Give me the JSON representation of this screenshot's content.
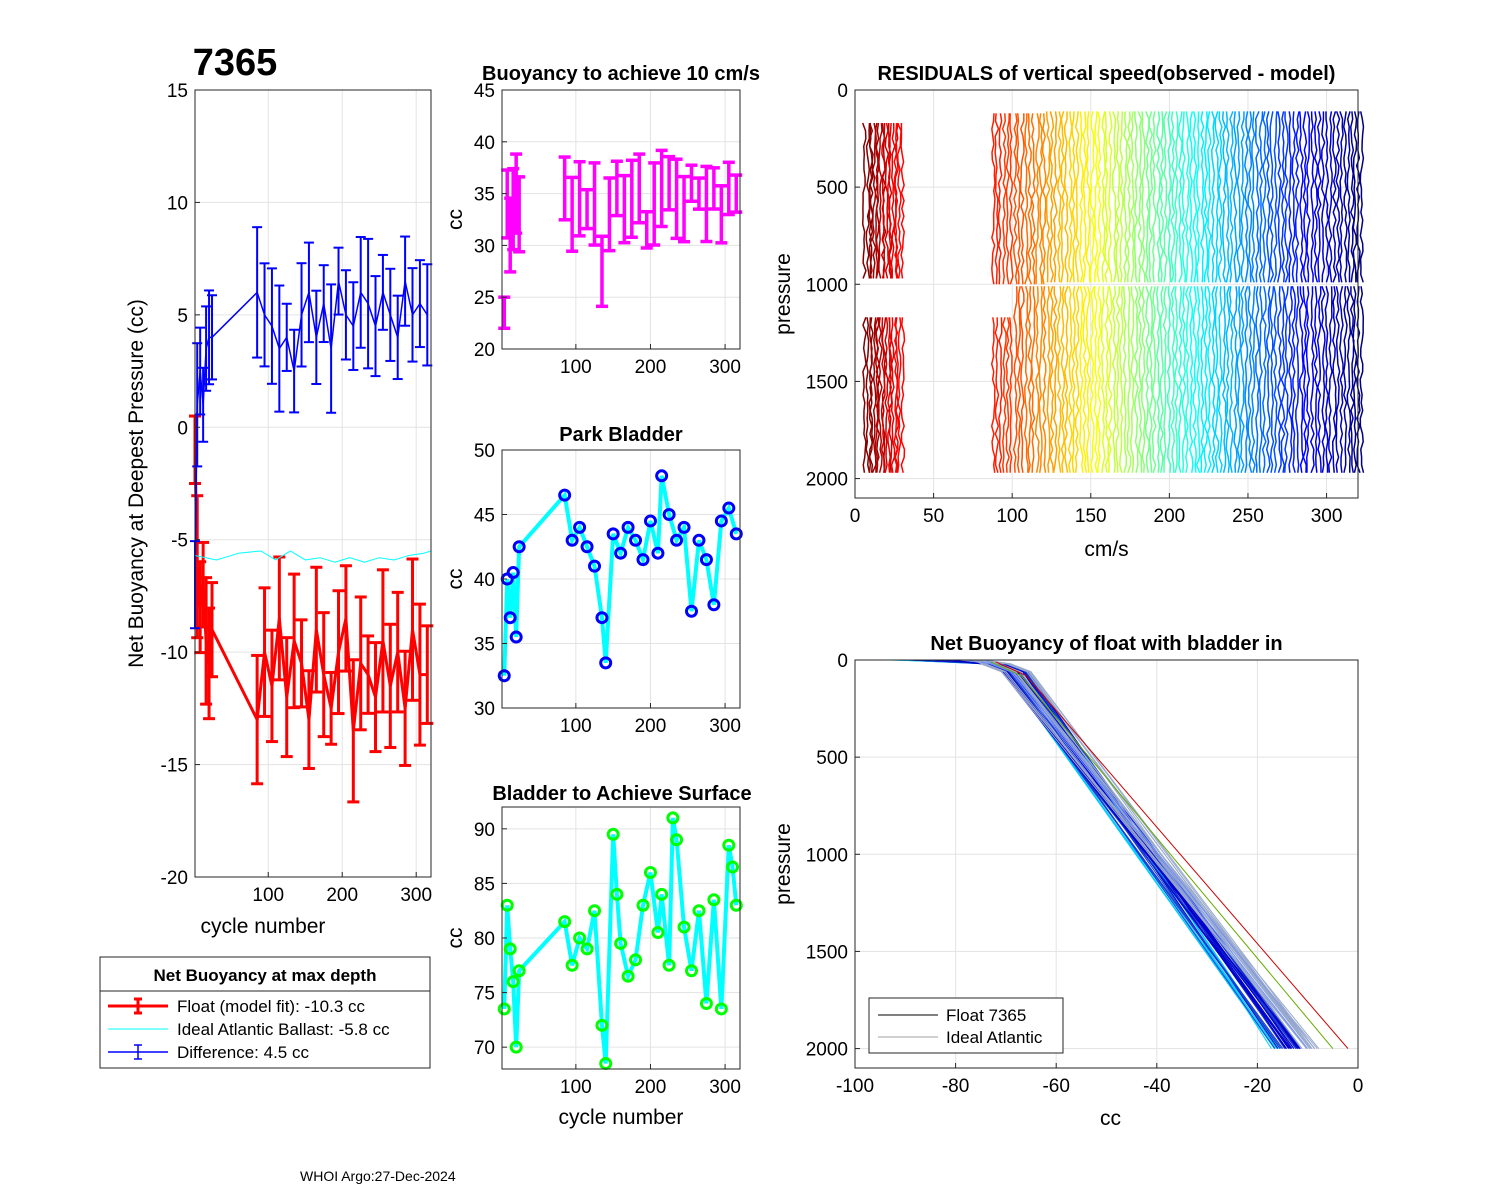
{
  "footer": "WHOI Argo:27-Dec-2024",
  "chart_data": [
    {
      "id": "netbuoy",
      "type": "line",
      "title": "7365",
      "xlabel": "cycle number",
      "ylabel": "Net Buoyancy at Deepest Pressure (cc)",
      "xlim": [
        1,
        320
      ],
      "ylim": [
        -20,
        15
      ],
      "xticks": [
        100,
        200,
        300
      ],
      "yticks": [
        15,
        10,
        5,
        0,
        -5,
        -10,
        -15,
        -20
      ],
      "series": [
        {
          "name": "Float (model fit)",
          "color": "#ff0000",
          "x": [
            1,
            4,
            8,
            12,
            16,
            20,
            24,
            85,
            95,
            105,
            115,
            125,
            135,
            145,
            155,
            165,
            175,
            185,
            195,
            205,
            215,
            225,
            235,
            245,
            255,
            265,
            275,
            285,
            295,
            305,
            315
          ],
          "y": [
            -1.0,
            -6.2,
            -8.0,
            -7.0,
            -9.5,
            -10.5,
            -9.0,
            -13.0,
            -10.0,
            -11.5,
            -8.5,
            -12.0,
            -9.5,
            -10.5,
            -13.0,
            -9.0,
            -11.0,
            -12.5,
            -10.0,
            -8.5,
            -13.5,
            -10.5,
            -11.0,
            -12.0,
            -9.5,
            -11.5,
            -10.0,
            -12.5,
            -9.0,
            -11.0,
            -11.0
          ]
        },
        {
          "name": "Ideal Atlantic Ballast",
          "color": "#00ffff",
          "x": [
            1,
            30,
            60,
            90,
            110,
            130,
            150,
            170,
            190,
            210,
            230,
            250,
            270,
            290,
            310,
            320
          ],
          "y": [
            -5.7,
            -5.9,
            -5.6,
            -5.5,
            -5.9,
            -5.5,
            -5.9,
            -5.8,
            -6.0,
            -5.8,
            -6.0,
            -5.8,
            -5.9,
            -5.7,
            -5.6,
            -5.5
          ],
          "value_label": "-5.8 cc"
        },
        {
          "name": "Difference",
          "color": "#0000ff",
          "x": [
            1,
            4,
            8,
            12,
            16,
            20,
            24,
            85,
            95,
            105,
            115,
            125,
            135,
            145,
            155,
            165,
            175,
            185,
            195,
            205,
            215,
            225,
            235,
            245,
            255,
            265,
            275,
            285,
            295,
            305,
            315
          ],
          "y": [
            -7.0,
            1.0,
            2.5,
            1.0,
            3.5,
            4.0,
            4.0,
            6.0,
            5.0,
            4.5,
            3.5,
            4.0,
            2.5,
            5.0,
            6.0,
            4.0,
            5.5,
            3.5,
            6.5,
            5.0,
            4.5,
            6.0,
            5.5,
            4.5,
            6.0,
            5.0,
            4.0,
            6.5,
            5.0,
            5.5,
            5.0
          ]
        }
      ],
      "legend": {
        "title": "Net Buoyancy at max depth",
        "entries": [
          {
            "label": "Float (model fit): -10.3 cc",
            "color": "#ff0000"
          },
          {
            "label": "Ideal Atlantic Ballast:  -5.8 cc",
            "color": "#00ffff"
          },
          {
            "label": "Difference:   4.5 cc",
            "color": "#0000ff"
          }
        ]
      }
    },
    {
      "id": "buoy10",
      "type": "scatter",
      "title": "Buoyancy to achieve 10 cm/s",
      "xlabel": "",
      "ylabel": "cc",
      "xlim": [
        1,
        320
      ],
      "ylim": [
        20,
        45
      ],
      "xticks": [
        100,
        200,
        300
      ],
      "yticks": [
        45,
        40,
        35,
        30,
        25,
        20
      ],
      "color": "#ff00ff",
      "x": [
        4,
        8,
        12,
        16,
        20,
        24,
        85,
        95,
        105,
        115,
        125,
        135,
        145,
        155,
        165,
        175,
        185,
        195,
        205,
        215,
        225,
        235,
        245,
        255,
        265,
        275,
        285,
        295,
        305,
        315
      ],
      "y": [
        23.5,
        34.0,
        31.0,
        33.5,
        35.0,
        33.0,
        35.5,
        33.0,
        34.5,
        33.5,
        34.0,
        27.5,
        33.0,
        35.5,
        33.5,
        34.5,
        35.5,
        31.5,
        34.0,
        35.5,
        36.0,
        34.5,
        33.5,
        36.0,
        35.0,
        34.0,
        35.5,
        33.0,
        35.5,
        35.0
      ]
    },
    {
      "id": "park",
      "type": "scatter",
      "title": "Park Bladder",
      "xlabel": "",
      "ylabel": "cc",
      "xlim": [
        1,
        320
      ],
      "ylim": [
        30,
        50
      ],
      "xticks": [
        100,
        200,
        300
      ],
      "yticks": [
        50,
        45,
        40,
        35,
        30
      ],
      "color": "#0000ff",
      "x": [
        4,
        8,
        12,
        16,
        20,
        24,
        85,
        95,
        105,
        115,
        125,
        135,
        140,
        150,
        160,
        170,
        180,
        190,
        200,
        210,
        215,
        225,
        235,
        245,
        255,
        265,
        275,
        285,
        295,
        305,
        315
      ],
      "y": [
        32.5,
        40.0,
        37.0,
        40.5,
        35.5,
        42.5,
        46.5,
        43.0,
        44.0,
        42.5,
        41.0,
        37.0,
        33.5,
        43.5,
        42.0,
        44.0,
        43.0,
        41.5,
        44.5,
        42.0,
        48.0,
        45.0,
        43.0,
        44.0,
        37.5,
        43.0,
        41.5,
        38.0,
        44.5,
        45.5,
        43.5
      ]
    },
    {
      "id": "surface",
      "type": "scatter",
      "title": "Bladder to Achieve Surface",
      "xlabel": "cycle number",
      "ylabel": "cc",
      "xlim": [
        1,
        320
      ],
      "ylim": [
        68,
        92
      ],
      "xticks": [
        100,
        200,
        300
      ],
      "yticks": [
        90,
        85,
        80,
        75,
        70
      ],
      "color": "#00ff00",
      "x": [
        4,
        8,
        12,
        16,
        20,
        24,
        85,
        95,
        105,
        115,
        125,
        135,
        140,
        150,
        155,
        160,
        170,
        180,
        190,
        200,
        210,
        215,
        225,
        230,
        235,
        245,
        255,
        265,
        275,
        285,
        295,
        305,
        310,
        315
      ],
      "y": [
        73.5,
        83.0,
        79.0,
        76.0,
        70.0,
        77.0,
        81.5,
        77.5,
        80.0,
        79.0,
        82.5,
        72.0,
        68.5,
        89.5,
        84.0,
        79.5,
        76.5,
        78.0,
        83.0,
        86.0,
        80.5,
        84.0,
        77.5,
        91.0,
        89.0,
        81.0,
        77.0,
        82.5,
        74.0,
        83.5,
        73.5,
        88.5,
        86.5,
        83.0
      ]
    },
    {
      "id": "residuals",
      "type": "line",
      "title": "RESIDUALS of vertical speed(observed - model)",
      "xlabel": "cm/s",
      "ylabel": "pressure",
      "xlim": [
        0,
        320
      ],
      "ylim": [
        0,
        2100
      ],
      "xticks": [
        0,
        50,
        100,
        150,
        200,
        250,
        300
      ],
      "yticks": [
        0,
        500,
        1000,
        1500,
        2000
      ],
      "profile_offsets": [
        6,
        10,
        14,
        18,
        22,
        26,
        88,
        95,
        102,
        109,
        116,
        123,
        130,
        137,
        144,
        151,
        158,
        165,
        172,
        179,
        186,
        193,
        200,
        207,
        214,
        221,
        228,
        235,
        242,
        249,
        256,
        263,
        270,
        277,
        284,
        291,
        298,
        305,
        312,
        318
      ],
      "pressure_range": [
        120,
        2000
      ],
      "colormap": "jet"
    },
    {
      "id": "netprofile",
      "type": "line",
      "title": "Net Buoyancy of float with bladder in",
      "xlabel": "cc",
      "ylabel": "pressure",
      "xlim": [
        -100,
        0
      ],
      "ylim": [
        0,
        2100
      ],
      "xticks": [
        -100,
        -80,
        -60,
        -40,
        -20,
        0
      ],
      "yticks": [
        0,
        500,
        1000,
        1500,
        2000
      ],
      "profiles_start_x": [
        -92,
        -90,
        -88,
        -86,
        -84,
        -82,
        -80,
        -78,
        -76,
        -74
      ],
      "profiles_end_x": [
        -17,
        -15,
        -13,
        -12,
        -11,
        -10,
        -9,
        -8,
        -5,
        -2
      ],
      "legend": {
        "entries": [
          {
            "label": "Float 7365",
            "color": "#000000"
          },
          {
            "label": "Ideal Atlantic",
            "color": "#a0a0a0"
          }
        ]
      }
    }
  ]
}
